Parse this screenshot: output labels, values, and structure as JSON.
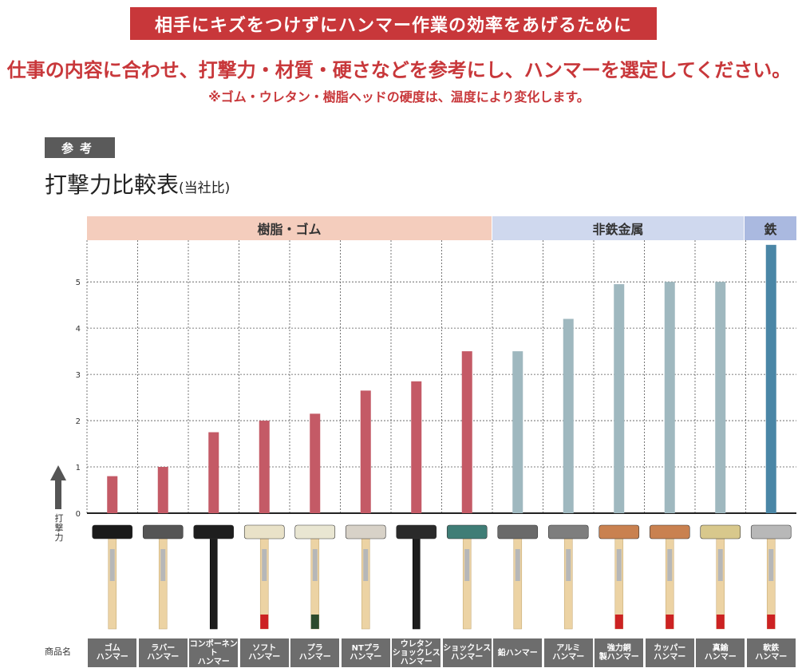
{
  "header": {
    "banner": "相手にキズをつけずにハンマー作業の効率をあげるために",
    "headline": "仕事の内容に合わせ、打撃力・材質・硬さなどを参考にし、ハンマーを選定してください。",
    "note": "※ゴム・ウレタン・樹脂ヘッドの硬度は、温度により変化します。"
  },
  "reference_badge": "参考",
  "chart_title": "打撃力比較表",
  "chart_subtitle": "(当社比)",
  "y_axis_label": "打撃力",
  "product_name_label": "商品名",
  "categories": [
    {
      "label": "樹脂・ゴム",
      "color": "#f4cdbd"
    },
    {
      "label": "非鉄金属",
      "color": "#cfd8ee"
    },
    {
      "label": "鉄",
      "color": "#aab9e0"
    }
  ],
  "colors": {
    "resin_bar": "#c45a66",
    "nonferrous_bar": "#9fb8bf",
    "iron_bar": "#4a86a6",
    "handle": "#ecd3a4",
    "name_cell_bg": "#6d6d6d"
  },
  "chart_data": {
    "type": "bar",
    "title": "打撃力比較表",
    "subtitle": "(当社比)",
    "ylabel": "打撃力",
    "xlabel": "商品名",
    "ylim": [
      0,
      5.9
    ],
    "yticks": [
      0,
      1,
      2,
      3,
      4,
      5
    ],
    "grid": true,
    "categories": [
      "ゴム\nハンマー",
      "ラバー\nハンマー",
      "コンポーネント\nハンマー",
      "ソフト\nハンマー",
      "プラ\nハンマー",
      "NTプラ\nハンマー",
      "ウレタン\nショックレス\nハンマー",
      "ショックレス\nハンマー",
      "鉛ハンマー",
      "アルミ\nハンマー",
      "強力銅\n製ハンマー",
      "カッパー\nハンマー",
      "真鍮\nハンマー",
      "軟鉄\nハンマー"
    ],
    "groups": [
      "樹脂・ゴム",
      "樹脂・ゴム",
      "樹脂・ゴム",
      "樹脂・ゴム",
      "樹脂・ゴム",
      "樹脂・ゴム",
      "樹脂・ゴム",
      "樹脂・ゴム",
      "非鉄金属",
      "非鉄金属",
      "非鉄金属",
      "非鉄金属",
      "非鉄金属",
      "鉄"
    ],
    "values": [
      0.8,
      1.0,
      1.75,
      2.0,
      2.15,
      2.65,
      2.85,
      3.5,
      3.5,
      4.2,
      4.95,
      5.0,
      5.0,
      5.8
    ]
  },
  "hammers": [
    {
      "head": "#1a1a1a",
      "grip": "",
      "handle": "wood"
    },
    {
      "head": "#555555",
      "grip": "",
      "handle": "wood"
    },
    {
      "head": "#1e1e1e",
      "grip": "",
      "handle": "black"
    },
    {
      "head": "#e9e2c8",
      "grip": "#cc2222",
      "handle": "wood"
    },
    {
      "head": "#e9e6d2",
      "grip": "#2d4a2d",
      "handle": "wood"
    },
    {
      "head": "#d8d2c8",
      "grip": "",
      "handle": "wood"
    },
    {
      "head": "#2a2a2a",
      "grip": "",
      "handle": "black"
    },
    {
      "head": "#3f7d76",
      "grip": "",
      "handle": "wood"
    },
    {
      "head": "#6a6a6a",
      "grip": "",
      "handle": "wood"
    },
    {
      "head": "#7e7e7e",
      "grip": "",
      "handle": "wood"
    },
    {
      "head": "#c98150",
      "grip": "#cc2222",
      "handle": "wood"
    },
    {
      "head": "#c98150",
      "grip": "#cc2222",
      "handle": "wood"
    },
    {
      "head": "#d8c88c",
      "grip": "#cc2222",
      "handle": "wood"
    },
    {
      "head": "#b8b8b8",
      "grip": "#cc2222",
      "handle": "wood"
    }
  ]
}
